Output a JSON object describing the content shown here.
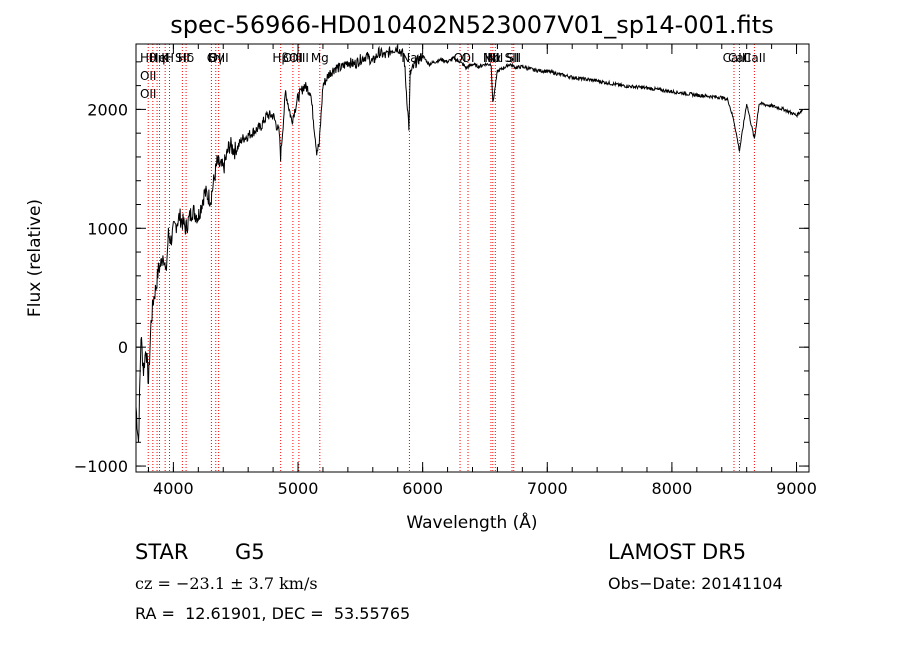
{
  "chart_data": {
    "type": "line",
    "title": "spec-56966-HD010402N523007V01_sp14-001.fits",
    "xlabel": "Wavelength (Å)",
    "ylabel": "Flux (relative)",
    "xlim": [
      3700,
      9100
    ],
    "ylim": [
      -1050,
      2550
    ],
    "x_ticks": [
      4000,
      5000,
      6000,
      7000,
      8000,
      9000
    ],
    "y_ticks": [
      -1000,
      0,
      1000,
      2000
    ],
    "grid": false,
    "series": [
      {
        "x": [
          3700,
          3720,
          3740,
          3760,
          3780,
          3800,
          3820,
          3840,
          3860,
          3880,
          3900,
          3920,
          3940,
          3960,
          3980,
          4000,
          4050,
          4100,
          4150,
          4200,
          4250,
          4300,
          4350,
          4400,
          4450,
          4500,
          4550,
          4600,
          4650,
          4700,
          4750,
          4800,
          4850,
          4860,
          4900,
          4950,
          5000,
          5050,
          5100,
          5150,
          5170,
          5200,
          5250,
          5300,
          5350,
          5400,
          5450,
          5500,
          5550,
          5600,
          5650,
          5700,
          5750,
          5800,
          5850,
          5890,
          5900,
          5950,
          6000,
          6050,
          6100,
          6150,
          6200,
          6250,
          6300,
          6350,
          6400,
          6450,
          6500,
          6550,
          6563,
          6600,
          6650,
          6700,
          6750,
          6800,
          6900,
          7000,
          7200,
          7400,
          7600,
          7800,
          8000,
          8200,
          8400,
          8450,
          8498,
          8542,
          8600,
          8662,
          8700,
          8800,
          8900,
          9000,
          9050
        ],
        "values": [
          -500,
          -800,
          100,
          -200,
          0,
          -300,
          200,
          400,
          500,
          650,
          700,
          800,
          600,
          950,
          900,
          980,
          1100,
          1000,
          1150,
          1100,
          1300,
          1250,
          1550,
          1500,
          1700,
          1650,
          1750,
          1780,
          1820,
          1850,
          1950,
          1950,
          1800,
          1600,
          2150,
          1900,
          2100,
          2200,
          2150,
          1650,
          1700,
          2200,
          2300,
          2350,
          2350,
          2400,
          2380,
          2420,
          2450,
          2400,
          2480,
          2450,
          2500,
          2520,
          2450,
          1850,
          2300,
          2400,
          2450,
          2380,
          2400,
          2420,
          2400,
          2430,
          2400,
          2350,
          2380,
          2360,
          2380,
          2380,
          2050,
          2320,
          2350,
          2380,
          2350,
          2360,
          2330,
          2320,
          2270,
          2240,
          2200,
          2180,
          2150,
          2120,
          2100,
          2080,
          1900,
          1650,
          2050,
          1750,
          2050,
          2030,
          2000,
          1950,
          2000
        ]
      }
    ],
    "lines": [
      {
        "x": 3798,
        "labels": [
          "Hθ",
          "OII",
          "OII"
        ]
      },
      {
        "x": 3835,
        "labels": []
      },
      {
        "x": 3869,
        "labels": [
          "Hη"
        ]
      },
      {
        "x": 3889,
        "labels": [
          "HeI"
        ]
      },
      {
        "x": 3934,
        "labels": [
          "K"
        ]
      },
      {
        "x": 3969,
        "labels": [
          "H"
        ]
      },
      {
        "x": 4072,
        "labels": [
          "SII"
        ]
      },
      {
        "x": 4102,
        "labels": [
          "Hδ"
        ]
      },
      {
        "x": 4305,
        "labels": [
          "G"
        ]
      },
      {
        "x": 4340,
        "labels": [
          "Hγ"
        ]
      },
      {
        "x": 4363,
        "labels": [
          "OIII"
        ]
      },
      {
        "x": 4861,
        "labels": [
          "Hβ"
        ]
      },
      {
        "x": 4959,
        "labels": [
          "OIII"
        ]
      },
      {
        "x": 5007,
        "labels": [
          "OIII"
        ]
      },
      {
        "x": 5175,
        "labels": [
          "Mg"
        ]
      },
      {
        "x": 5894,
        "labels": [
          "Na"
        ]
      },
      {
        "x": 6300,
        "labels": [
          "OI"
        ]
      },
      {
        "x": 6364,
        "labels": [
          "OI"
        ]
      },
      {
        "x": 6548,
        "labels": [
          "NII"
        ]
      },
      {
        "x": 6563,
        "labels": [
          "Hα"
        ]
      },
      {
        "x": 6583,
        "labels": [
          "NII"
        ]
      },
      {
        "x": 6717,
        "labels": [
          "SII"
        ]
      },
      {
        "x": 6731,
        "labels": [
          "SII"
        ]
      },
      {
        "x": 8498,
        "labels": [
          "CaII"
        ]
      },
      {
        "x": 8542,
        "labels": [
          "CaII"
        ]
      },
      {
        "x": 8662,
        "labels": [
          "CaII"
        ]
      }
    ],
    "line_color": "#ff0000",
    "spectrum_color": "#000000"
  },
  "info": {
    "object_class": "STAR",
    "subclass": "G5",
    "survey": "LAMOST DR5",
    "redshift": "cz = −23.1 ± 3.7 km/s",
    "obs_date": "Obs−Date: 20141104",
    "coords": "RA =  12.61901, DEC =  53.55765"
  }
}
